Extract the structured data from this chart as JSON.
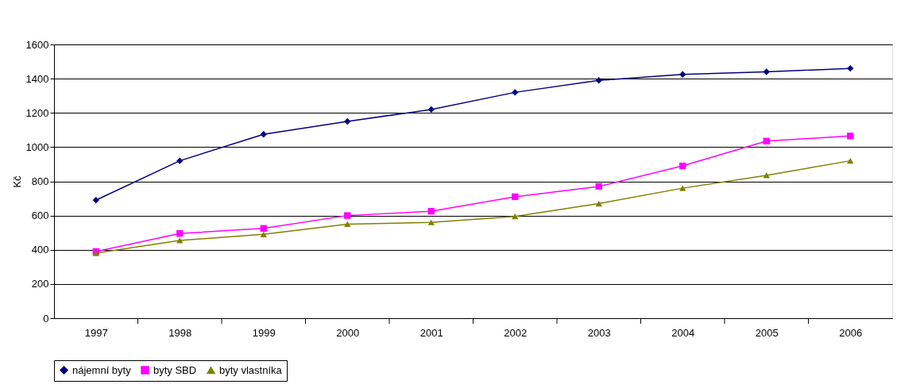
{
  "chart_data": {
    "type": "line",
    "ylabel": "Kč",
    "categories": [
      "1997",
      "1998",
      "1999",
      "2000",
      "2001",
      "2002",
      "2003",
      "2004",
      "2005",
      "2006"
    ],
    "ylim": [
      0,
      1600
    ],
    "yticks": [
      0,
      200,
      400,
      600,
      800,
      1000,
      1200,
      1400,
      1600
    ],
    "grid": "y",
    "legend": "bottom",
    "series": [
      {
        "name": "nájemní byty",
        "color": "#000080",
        "marker": "diamond",
        "values": [
          690,
          920,
          1075,
          1150,
          1220,
          1320,
          1390,
          1425,
          1440,
          1460
        ]
      },
      {
        "name": "byty SBD",
        "color": "#ff00ff",
        "marker": "square",
        "values": [
          390,
          495,
          525,
          600,
          625,
          710,
          770,
          890,
          1035,
          1065
        ]
      },
      {
        "name": "byty vlastníka",
        "color": "#808000",
        "marker": "triangle",
        "values": [
          380,
          455,
          490,
          550,
          560,
          595,
          670,
          760,
          835,
          920
        ]
      }
    ]
  }
}
